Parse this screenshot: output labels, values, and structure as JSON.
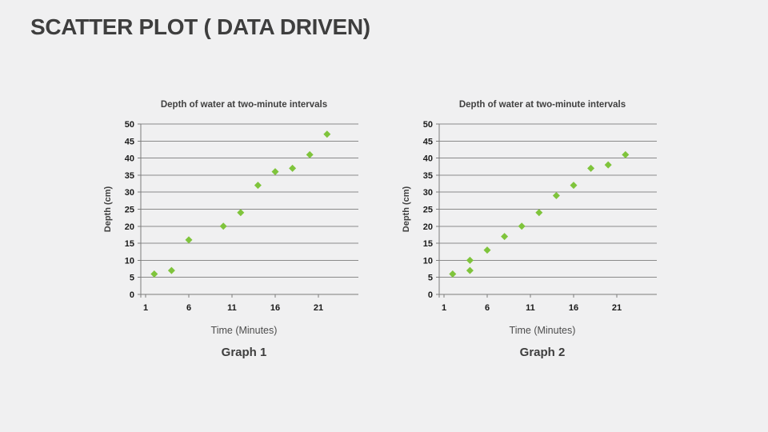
{
  "slide": {
    "title": "SCATTER PLOT ( DATA DRIVEN)"
  },
  "chart_data": [
    {
      "type": "scatter",
      "caption": "Graph 1",
      "title": "Depth of water at two-minute intervals",
      "xlabel": "Time (Minutes)",
      "ylabel": "Depth (cm)",
      "x_ticks": [
        1,
        6,
        11,
        16,
        21
      ],
      "y_ticks": [
        0,
        5,
        10,
        15,
        20,
        25,
        30,
        35,
        40,
        45,
        50
      ],
      "xlim": [
        1,
        26
      ],
      "ylim": [
        0,
        50
      ],
      "grid": "horizontal",
      "legend": "none",
      "marker": "diamond",
      "marker_color": "#7FC43C",
      "points": [
        [
          2,
          6
        ],
        [
          4,
          7
        ],
        [
          6,
          16
        ],
        [
          10,
          20
        ],
        [
          12,
          24
        ],
        [
          14,
          32
        ],
        [
          16,
          36
        ],
        [
          18,
          37
        ],
        [
          20,
          41
        ],
        [
          22,
          47
        ]
      ]
    },
    {
      "type": "scatter",
      "caption": "Graph 2",
      "title": "Depth of water at two-minute intervals",
      "xlabel": "Time (Minutes)",
      "ylabel": "Depth (cm)",
      "x_ticks": [
        1,
        6,
        11,
        16,
        21
      ],
      "y_ticks": [
        0,
        5,
        10,
        15,
        20,
        25,
        30,
        35,
        40,
        45,
        50
      ],
      "xlim": [
        1,
        26
      ],
      "ylim": [
        0,
        50
      ],
      "grid": "horizontal",
      "legend": "none",
      "marker": "diamond",
      "marker_color": "#7FC43C",
      "points": [
        [
          2,
          6
        ],
        [
          4,
          7
        ],
        [
          4,
          10
        ],
        [
          6,
          13
        ],
        [
          8,
          17
        ],
        [
          10,
          20
        ],
        [
          12,
          24
        ],
        [
          14,
          29
        ],
        [
          16,
          32
        ],
        [
          18,
          37
        ],
        [
          20,
          38
        ],
        [
          22,
          41
        ]
      ]
    }
  ]
}
